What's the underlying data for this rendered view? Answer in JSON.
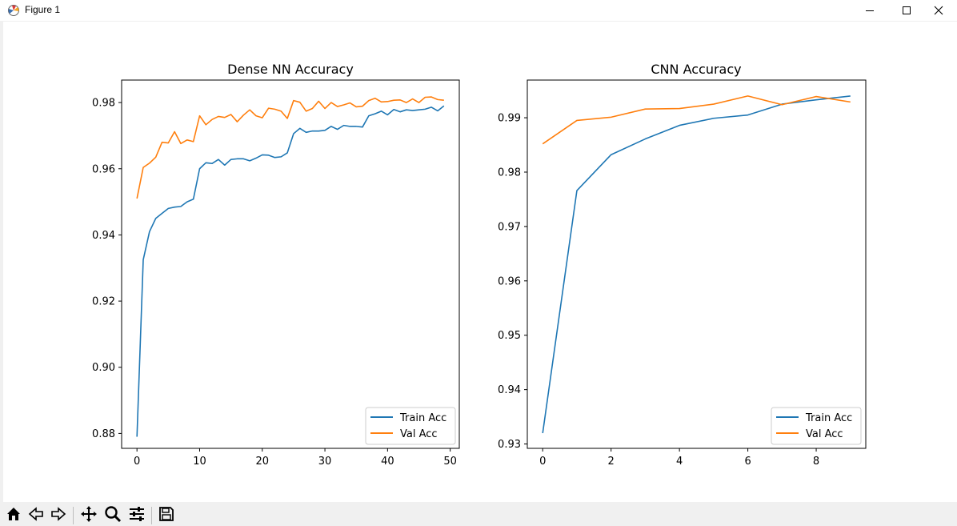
{
  "window": {
    "title": "Figure 1",
    "icons": {
      "app": "matplotlib-icon",
      "minimize": "minimize-icon",
      "maximize": "maximize-icon",
      "close": "close-icon"
    }
  },
  "toolbar": {
    "buttons": [
      "home-icon",
      "back-icon",
      "forward-icon",
      "pan-icon",
      "zoom-icon",
      "configure-subplots-icon",
      "save-icon"
    ]
  },
  "colors": {
    "train": "#1f77b4",
    "val": "#ff7f0e"
  },
  "chart_data": [
    {
      "type": "line",
      "title": "Dense NN Accuracy",
      "xlabel": "",
      "ylabel": "",
      "xlim": [
        -2.45,
        51.45
      ],
      "ylim": [
        0.8755,
        0.9868
      ],
      "xticks": [
        0,
        10,
        20,
        30,
        40,
        50
      ],
      "yticks": [
        0.88,
        0.9,
        0.92,
        0.94,
        0.96,
        0.98
      ],
      "ytick_labels": [
        "0.88",
        "0.90",
        "0.92",
        "0.94",
        "0.96",
        "0.98"
      ],
      "grid": false,
      "legend": "lower right",
      "x": [
        0,
        1,
        2,
        3,
        4,
        5,
        6,
        7,
        8,
        9,
        10,
        11,
        12,
        13,
        14,
        15,
        16,
        17,
        18,
        19,
        20,
        21,
        22,
        23,
        24,
        25,
        26,
        27,
        28,
        29,
        30,
        31,
        32,
        33,
        34,
        35,
        36,
        37,
        38,
        39,
        40,
        41,
        42,
        43,
        44,
        45,
        46,
        47,
        48,
        49
      ],
      "series": [
        {
          "name": "Train Acc",
          "values": [
            0.879,
            0.9325,
            0.941,
            0.945,
            0.9465,
            0.948,
            0.9484,
            0.9486,
            0.95,
            0.9508,
            0.96,
            0.9618,
            0.9616,
            0.9628,
            0.9611,
            0.9628,
            0.963,
            0.963,
            0.9624,
            0.9632,
            0.9642,
            0.9641,
            0.9634,
            0.9636,
            0.9648,
            0.9706,
            0.9722,
            0.971,
            0.9714,
            0.9714,
            0.9716,
            0.9728,
            0.9719,
            0.9731,
            0.9728,
            0.9728,
            0.9726,
            0.976,
            0.9766,
            0.9774,
            0.9763,
            0.9779,
            0.9772,
            0.9778,
            0.9776,
            0.9778,
            0.978,
            0.9786,
            0.9775,
            0.979
          ]
        },
        {
          "name": "Val Acc",
          "values": [
            0.951,
            0.9604,
            0.9617,
            0.9635,
            0.968,
            0.9678,
            0.9712,
            0.9676,
            0.9687,
            0.9682,
            0.976,
            0.9733,
            0.9749,
            0.9758,
            0.9755,
            0.9764,
            0.9742,
            0.9762,
            0.9778,
            0.976,
            0.9754,
            0.9783,
            0.978,
            0.9774,
            0.9752,
            0.9806,
            0.9801,
            0.9774,
            0.9782,
            0.9804,
            0.9782,
            0.98,
            0.9788,
            0.9793,
            0.9799,
            0.9787,
            0.9789,
            0.9806,
            0.9813,
            0.9802,
            0.9803,
            0.9807,
            0.9808,
            0.98,
            0.9811,
            0.98,
            0.9816,
            0.9817,
            0.9809,
            0.9807
          ]
        }
      ]
    },
    {
      "type": "line",
      "title": "CNN Accuracy",
      "xlabel": "",
      "ylabel": "",
      "xlim": [
        -0.45,
        9.45
      ],
      "ylim": [
        0.9292,
        0.99693
      ],
      "xticks": [
        0,
        2,
        4,
        6,
        8
      ],
      "yticks": [
        0.93,
        0.94,
        0.95,
        0.96,
        0.97,
        0.98,
        0.99
      ],
      "ytick_labels": [
        "0.93",
        "0.94",
        "0.95",
        "0.96",
        "0.97",
        "0.98",
        "0.99"
      ],
      "grid": false,
      "legend": "lower right",
      "x": [
        0,
        1,
        2,
        3,
        4,
        5,
        6,
        7,
        8,
        9
      ],
      "series": [
        {
          "name": "Train Acc",
          "values": [
            0.932,
            0.9766,
            0.9832,
            0.9861,
            0.9886,
            0.9899,
            0.9905,
            0.9925,
            0.9933,
            0.994
          ]
        },
        {
          "name": "Val Acc",
          "values": [
            0.9852,
            0.9895,
            0.9901,
            0.9916,
            0.9917,
            0.9925,
            0.994,
            0.9924,
            0.9939,
            0.9929
          ]
        }
      ]
    }
  ]
}
